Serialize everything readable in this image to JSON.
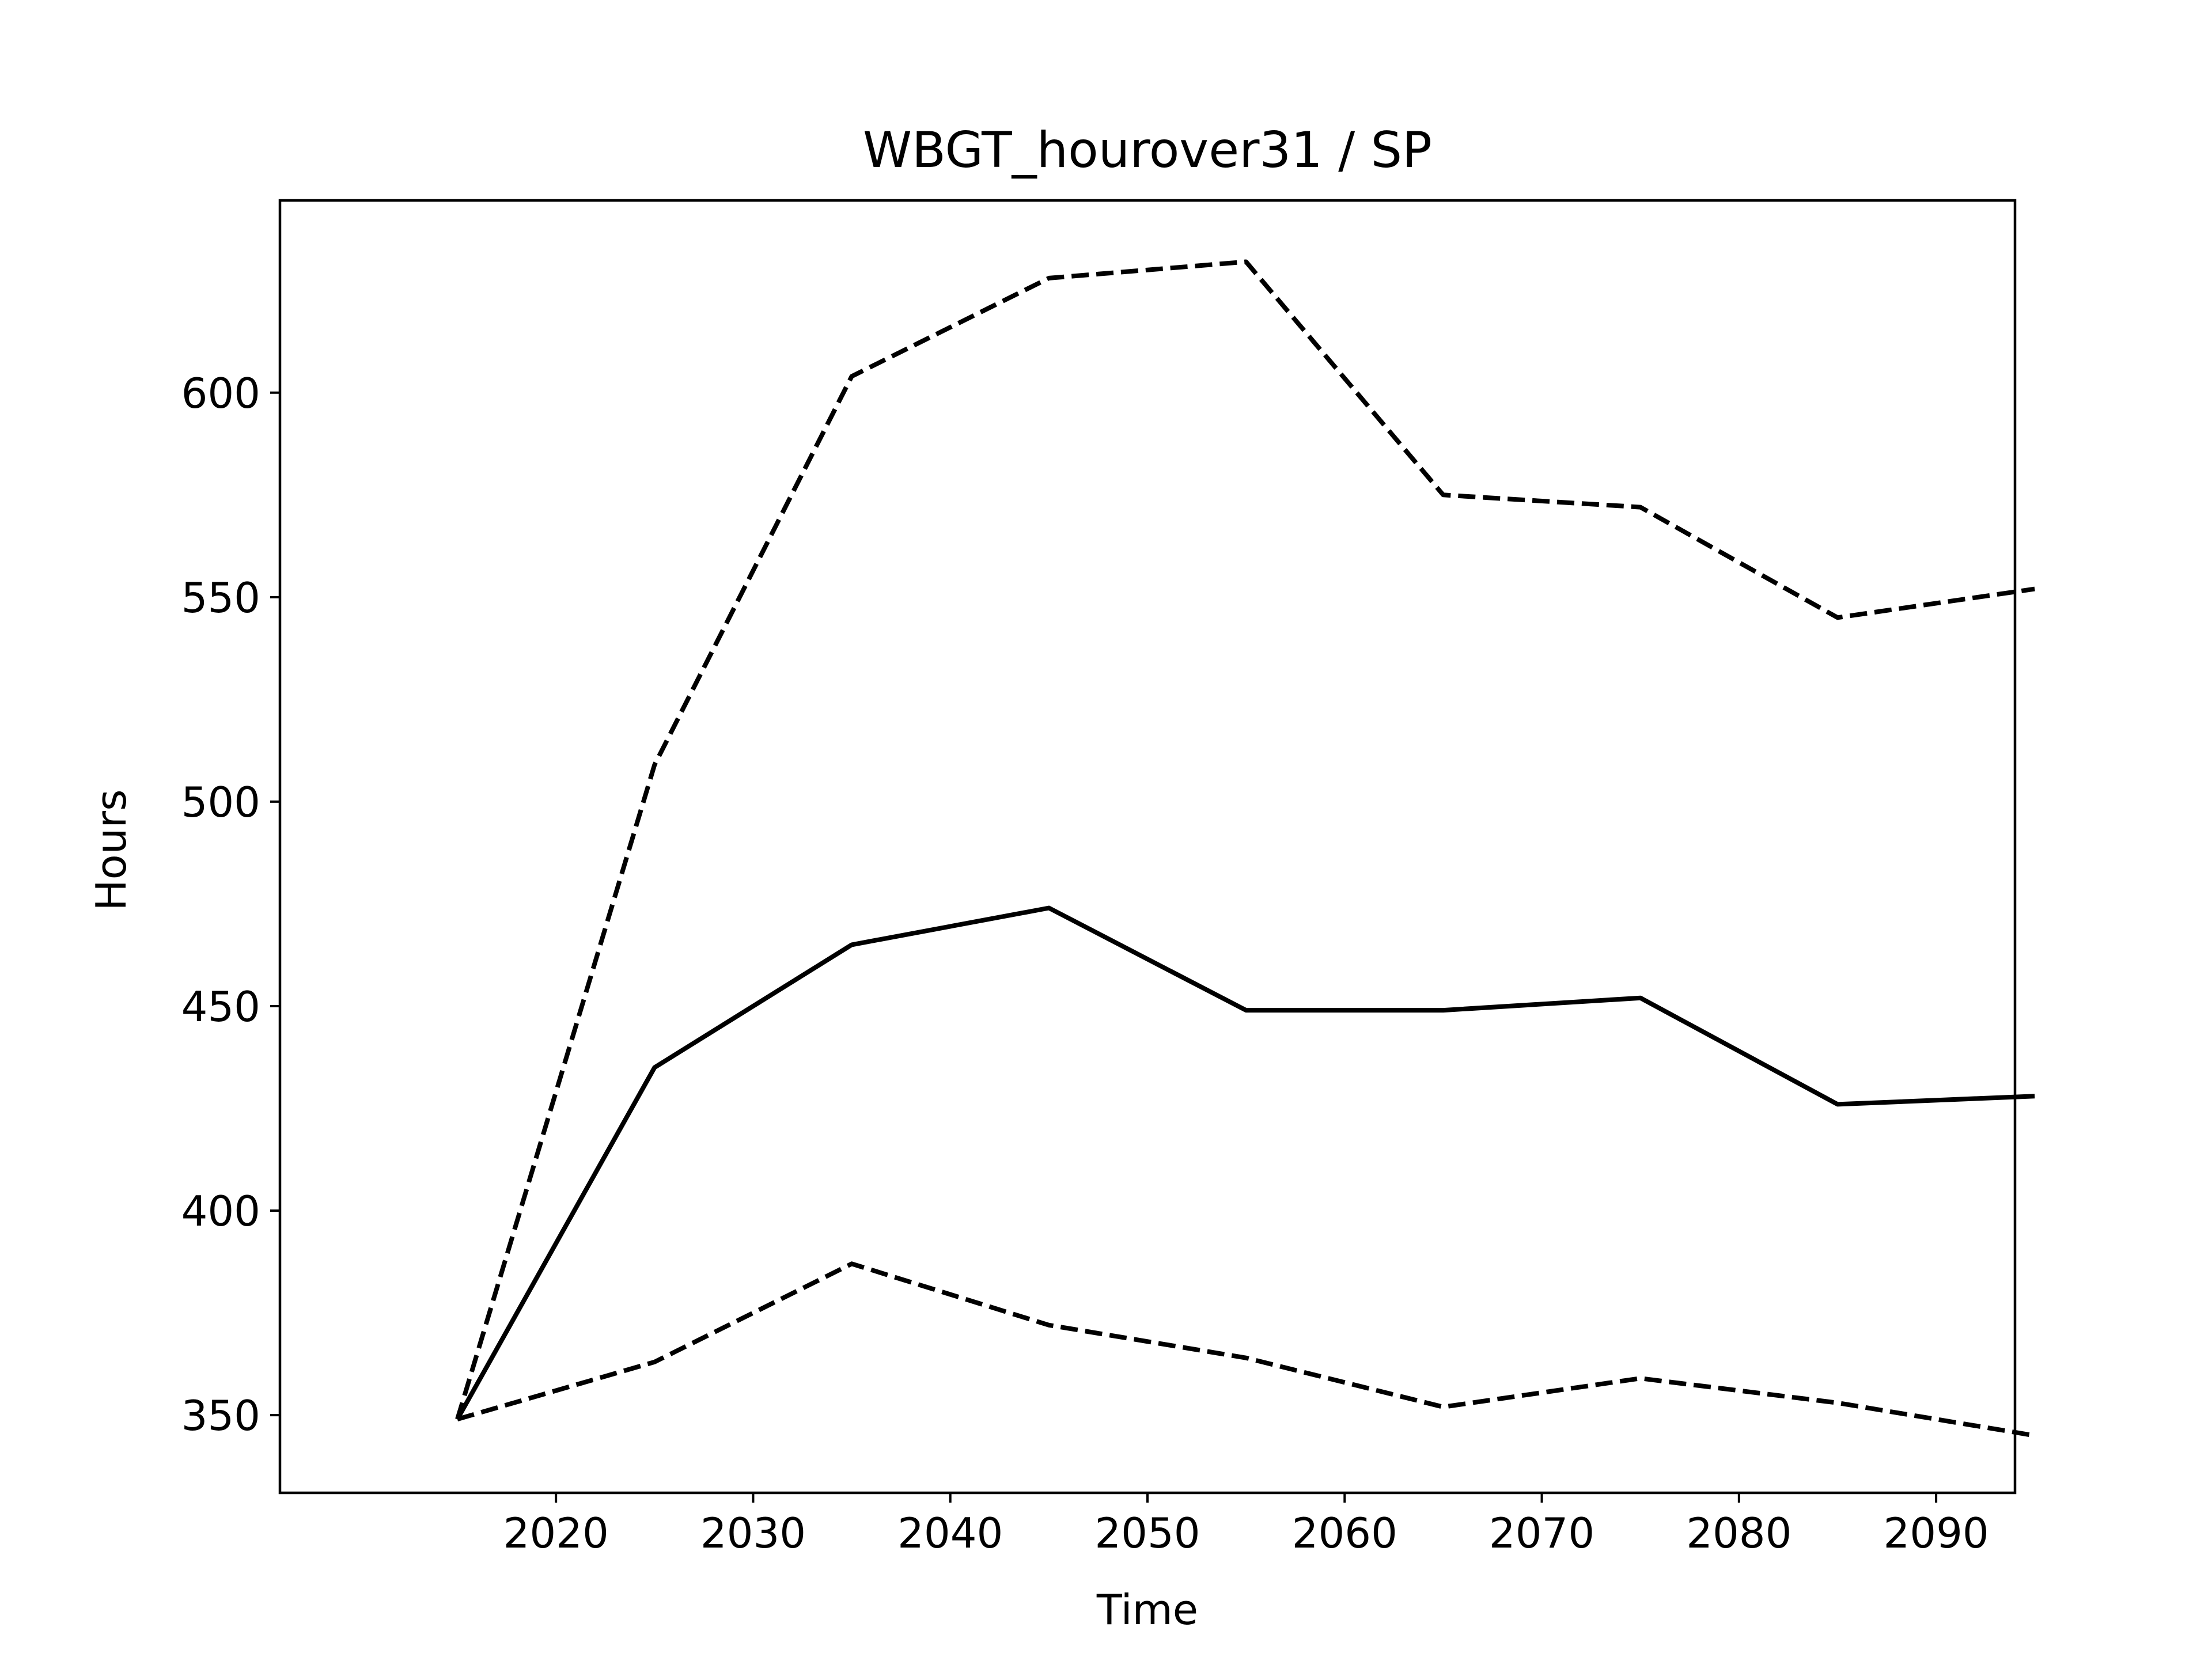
{
  "chart_data": {
    "type": "line",
    "title": "WBGT_hourover31 / SP",
    "xlabel": "Time",
    "ylabel": "Hours",
    "x": [
      2015,
      2025,
      2035,
      2045,
      2055,
      2065,
      2075,
      2085,
      2095
    ],
    "xlim": [
      2006,
      2094
    ],
    "ylim": [
      331,
      647
    ],
    "xticks": [
      2020,
      2030,
      2040,
      2050,
      2060,
      2070,
      2080,
      2090
    ],
    "yticks": [
      350,
      400,
      450,
      500,
      550,
      600
    ],
    "grid": false,
    "legend": "none",
    "line_color": "#000000",
    "series": [
      {
        "style": "dashed",
        "values": [
          349,
          509,
          604,
          628,
          632,
          575,
          572,
          545,
          552
        ]
      },
      {
        "style": "solid",
        "values": [
          349,
          435,
          465,
          474,
          449,
          449,
          452,
          426,
          428
        ]
      },
      {
        "style": "dashed",
        "values": [
          349,
          363,
          387,
          372,
          364,
          352,
          359,
          353,
          345
        ]
      }
    ]
  }
}
